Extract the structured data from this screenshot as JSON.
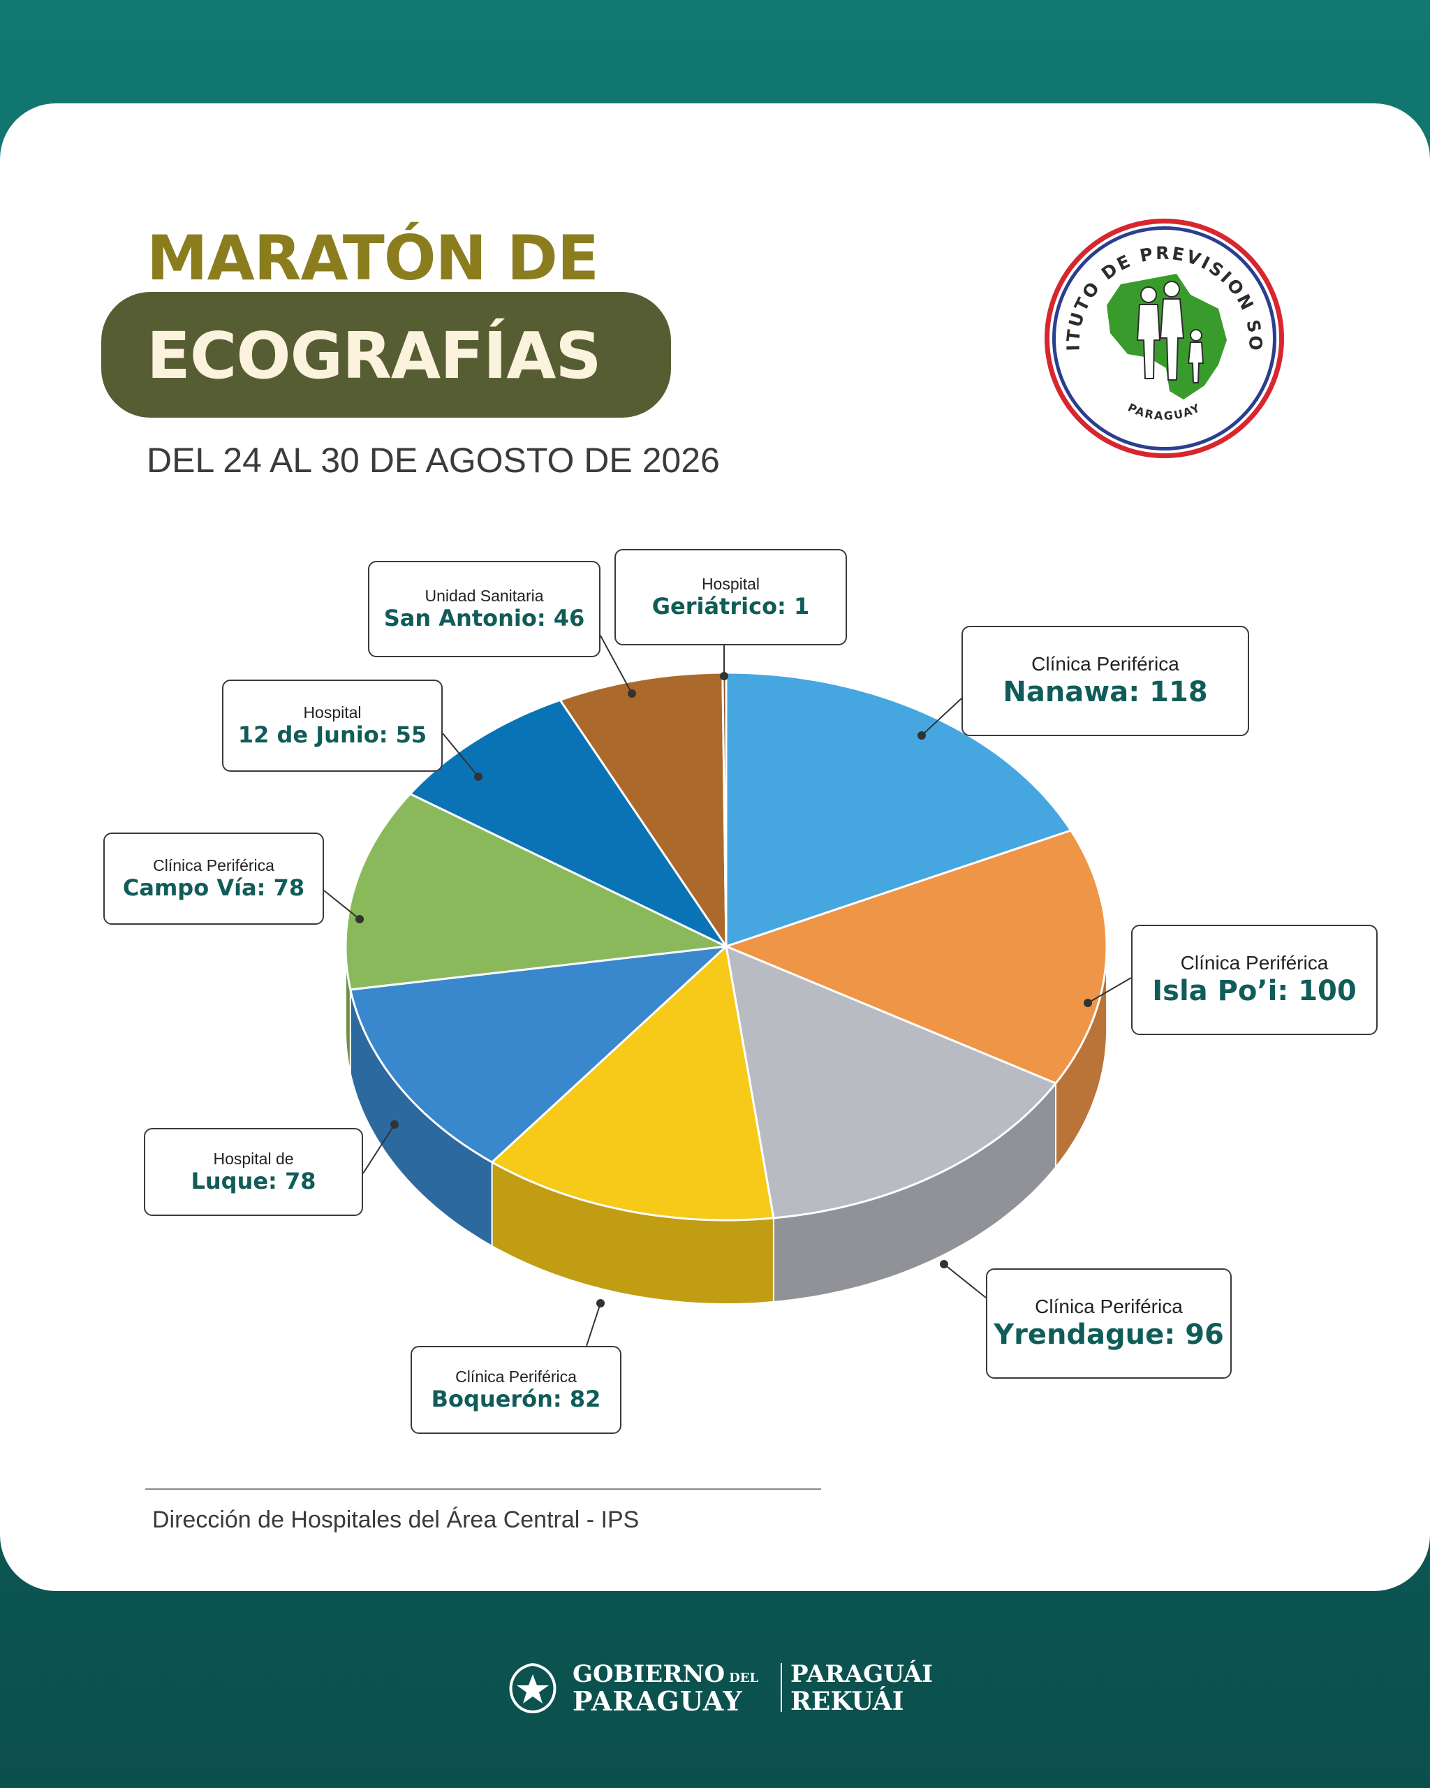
{
  "header": {
    "title_line1": "MARATÓN DE",
    "title_line2": "ECOGRAFÍAS",
    "date_range": "DEL 24 AL 30 DE AGOSTO DE 2026"
  },
  "logo": {
    "text": "INSTITUTO DE PREVISION SOCIAL",
    "country": "PARAGUAY",
    "colors": {
      "ring_red": "#d7262e",
      "ring_blue": "#2a3f8f",
      "map_green": "#3a9b2d"
    }
  },
  "chart_data": {
    "type": "pie",
    "style": "3d",
    "slices": [
      {
        "sub": "Clínica Periférica",
        "label": "Nanawa",
        "value": 118,
        "display": "Nanawa: 118",
        "color": "#45a6e0"
      },
      {
        "sub": "Clínica Periférica",
        "label": "Isla Po’i",
        "value": 100,
        "display": "Isla Po’i: 100",
        "color": "#ef9548"
      },
      {
        "sub": "Clínica Periférica",
        "label": "Yrendague",
        "value": 96,
        "display": "Yrendague: 96",
        "color": "#b9bbc2"
      },
      {
        "sub": "Clínica Periférica",
        "label": "Boquerón",
        "value": 82,
        "display": "Boquerón: 82",
        "color": "#f7c918"
      },
      {
        "sub": "Hospital de",
        "label": "Luque",
        "value": 78,
        "display": "Luque: 78",
        "color": "#3987cc"
      },
      {
        "sub": "Clínica Periférica",
        "label": "Campo Vía",
        "value": 78,
        "display": "Campo Vía: 78",
        "color": "#8ab95c"
      },
      {
        "sub": "Hospital",
        "label": "12 de Junio",
        "value": 55,
        "display": "12 de Junio: 55",
        "color": "#0a73b5"
      },
      {
        "sub": "Unidad Sanitaria",
        "label": "San Antonio",
        "value": 46,
        "display": "San Antonio: 46",
        "color": "#ab6a2b"
      },
      {
        "sub": "Hospital",
        "label": "Geriátrico",
        "value": 1,
        "display": "Geriátrico: 1",
        "color": "#8a5a2c"
      }
    ]
  },
  "footer": {
    "source": "Dirección de Hospitales del Área Central - IPS",
    "gov_line1": "GOBIERNO",
    "gov_del": "DEL",
    "gov_line2": "PARAGUAY",
    "motto_line1": "PARAGUÁI",
    "motto_line2": "REKUÁI"
  }
}
